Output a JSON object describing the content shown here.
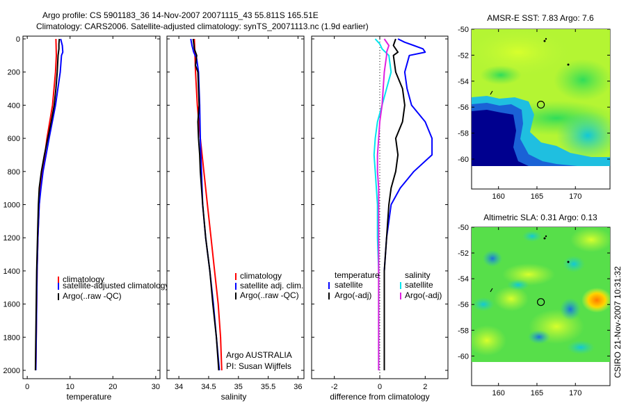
{
  "header": {
    "line1": "Argo profile: CS 5901183_36 14-Nov-2007 20071115_43 55.811S 165.51E",
    "line2": "Climatology: CARS2006. Satellite-adjusted climatology: synTS_20071113.nc (1.9d earlier)"
  },
  "footer": {
    "stamp": "CSIRO 21-Nov-2007 10:31:32"
  },
  "colors": {
    "climatology": "#ff0000",
    "satellite": "#0000ff",
    "argo": "#000000",
    "salinity_satellite": "#00e5ee",
    "salinity_argo": "#e020e0"
  },
  "chart_data": [
    {
      "type": "line",
      "xlabel": "temperature",
      "ylim": [
        2000,
        0
      ],
      "xlim": [
        -1,
        31
      ],
      "xticks": [
        0,
        10,
        20,
        30
      ],
      "yticks": [
        0,
        200,
        400,
        600,
        800,
        1000,
        1200,
        1400,
        1600,
        1800,
        2000
      ],
      "series": [
        {
          "name": "climatology",
          "color": "#ff0000",
          "depth": [
            0,
            100,
            200,
            400,
            600,
            800,
            900,
            1000,
            1200,
            1400,
            1600,
            1800,
            2000
          ],
          "values": [
            6.7,
            6.8,
            6.6,
            5.9,
            4.6,
            3.6,
            3.1,
            2.8,
            2.5,
            2.3,
            2.2,
            2.1,
            2.0
          ]
        },
        {
          "name": "satellite-adjusted climatology",
          "color": "#0000ff",
          "depth": [
            0,
            20,
            40,
            80,
            100,
            200,
            400,
            600,
            800,
            900,
            1000,
            1200,
            1400,
            1600,
            1800,
            2000
          ],
          "values": [
            7.8,
            8.0,
            8.2,
            8.3,
            8.0,
            7.7,
            6.6,
            5.1,
            3.7,
            3.2,
            2.8,
            2.5,
            2.3,
            2.2,
            2.1,
            2.0
          ]
        },
        {
          "name": "Argo(..raw -QC)",
          "color": "#000000",
          "depth": [
            0,
            30,
            60,
            100,
            200,
            300,
            400,
            500,
            600,
            700,
            800,
            900,
            1000,
            1200,
            1400,
            1600,
            1800,
            2000
          ],
          "values": [
            7.5,
            7.4,
            7.4,
            7.2,
            7.0,
            6.7,
            6.3,
            5.6,
            4.8,
            4.0,
            3.3,
            2.8,
            2.6,
            2.4,
            2.2,
            2.1,
            2.0,
            1.9
          ]
        }
      ],
      "legend": {
        "position": "lower-right",
        "entries": [
          "climatology",
          "satellite-adjusted climatology",
          "Argo(..raw -QC)"
        ]
      }
    },
    {
      "type": "line",
      "xlabel": "salinity",
      "ylim": [
        2000,
        0
      ],
      "xlim": [
        33.8,
        36.1
      ],
      "xticks": [
        34,
        34.5,
        35,
        35.5,
        36
      ],
      "series": [
        {
          "name": "climatology",
          "color": "#ff0000",
          "depth": [
            0,
            100,
            200,
            400,
            600,
            800,
            1000,
            1200,
            1400,
            1600,
            1800,
            2000
          ],
          "values": [
            34.26,
            34.27,
            34.28,
            34.31,
            34.36,
            34.42,
            34.48,
            34.54,
            34.6,
            34.66,
            34.7,
            34.72
          ]
        },
        {
          "name": "satellite adj. clim.",
          "color": "#0000ff",
          "depth": [
            0,
            40,
            80,
            120,
            200,
            400,
            600,
            800,
            900,
            1000,
            1200,
            1400,
            1600,
            1800,
            2000
          ],
          "values": [
            34.2,
            34.22,
            34.25,
            34.3,
            34.33,
            34.35,
            34.36,
            34.38,
            34.39,
            34.4,
            34.45,
            34.52,
            34.58,
            34.63,
            34.68
          ]
        },
        {
          "name": "Argo(..raw -QC)",
          "color": "#000000",
          "depth": [
            0,
            60,
            100,
            160,
            200,
            300,
            400,
            500,
            600,
            700,
            800,
            900,
            1000,
            1200,
            1400,
            1600,
            1800,
            2000
          ],
          "values": [
            34.24,
            34.26,
            34.3,
            34.28,
            34.32,
            34.33,
            34.34,
            34.32,
            34.33,
            34.35,
            34.36,
            34.38,
            34.4,
            34.45,
            34.52,
            34.57,
            34.63,
            34.67
          ]
        }
      ],
      "legend": {
        "position": "lower-right",
        "entries": [
          "climatology",
          "satellite adj. clim.",
          "Argo(..raw -QC)"
        ]
      },
      "annotation": {
        "line1": "Argo AUSTRALIA",
        "line2": "PI: Susan Wijffels"
      }
    },
    {
      "type": "line",
      "xlabel": "difference from climatology",
      "ylim": [
        2000,
        0
      ],
      "xlim": [
        -3,
        3
      ],
      "xticks": [
        -2,
        0,
        2
      ],
      "zero_line": true,
      "series": [
        {
          "name": "temperature satellite",
          "color": "#0000ff",
          "depth": [
            0,
            20,
            40,
            60,
            80,
            100,
            200,
            300,
            400,
            500,
            600,
            700,
            800,
            900,
            1000,
            1200,
            1400,
            1600,
            1800,
            2000
          ],
          "values": [
            0.8,
            1.1,
            1.5,
            1.9,
            2.0,
            1.3,
            1.1,
            1.2,
            1.4,
            2.0,
            2.3,
            2.3,
            1.5,
            0.9,
            0.5,
            0.3,
            0.2,
            0.2,
            0.2,
            0.2
          ]
        },
        {
          "name": "temperature Argo(-adj)",
          "color": "#000000",
          "depth": [
            0,
            40,
            80,
            100,
            200,
            300,
            400,
            500,
            600,
            700,
            800,
            900,
            1000,
            1200,
            1400,
            1600,
            1800,
            2000
          ],
          "values": [
            0.7,
            0.6,
            0.8,
            0.6,
            0.7,
            1.0,
            1.1,
            1.0,
            0.7,
            0.8,
            0.7,
            0.5,
            0.4,
            0.3,
            0.2,
            0.2,
            0.2,
            0.2
          ]
        },
        {
          "name": "salinity satellite",
          "color": "#00e5ee",
          "depth": [
            0,
            30,
            60,
            100,
            200,
            300,
            400,
            500,
            600,
            700,
            800,
            900,
            1000,
            1200,
            1400,
            1600,
            1800,
            2000
          ],
          "values": [
            -0.2,
            0.0,
            0.1,
            0.4,
            0.5,
            0.3,
            0.1,
            -0.1,
            -0.2,
            -0.25,
            -0.2,
            -0.15,
            -0.1,
            -0.1,
            -0.05,
            -0.05,
            -0.05,
            -0.05
          ]
        },
        {
          "name": "salinity Argo(-adj)",
          "color": "#e020e0",
          "depth": [
            0,
            40,
            80,
            100,
            200,
            300,
            400,
            500,
            600,
            700,
            800,
            900,
            1000,
            1200,
            1400,
            1600,
            1800,
            2000
          ],
          "values": [
            0.2,
            0.4,
            0.3,
            0.3,
            0.2,
            0.15,
            0.1,
            0.0,
            -0.05,
            -0.1,
            -0.1,
            -0.05,
            -0.05,
            -0.05,
            -0.05,
            -0.05,
            -0.05,
            -0.05
          ]
        }
      ],
      "legend": {
        "position": "lower",
        "group1_title": "temperature",
        "group1": [
          "satellite",
          "Argo(-adj)"
        ],
        "group2_title": "salinity",
        "group2": [
          "satellite",
          "Argo(-adj)"
        ]
      }
    },
    {
      "type": "heatmap",
      "title": "AMSR-E SST: 7.83 Argo: 7.6",
      "xlim": [
        156.5,
        174.5
      ],
      "ylim": [
        -60,
        -50
      ],
      "full_ylim": [
        -62.3,
        -50
      ],
      "xticks": [
        160,
        165,
        170
      ],
      "yticks": [
        -50,
        -52,
        -54,
        -56,
        -58,
        -60
      ],
      "marker": {
        "lon": 165.51,
        "lat": -55.81
      }
    },
    {
      "type": "heatmap",
      "title": "Altimetric SLA: 0.31 Argo: 0.13",
      "xlim": [
        156.5,
        174.5
      ],
      "ylim": [
        -60,
        -50
      ],
      "full_ylim": [
        -62.3,
        -50
      ],
      "xticks": [
        160,
        165,
        170
      ],
      "yticks": [
        -50,
        -52,
        -54,
        -56,
        -58,
        -60
      ],
      "marker": {
        "lon": 165.51,
        "lat": -55.81
      }
    }
  ]
}
